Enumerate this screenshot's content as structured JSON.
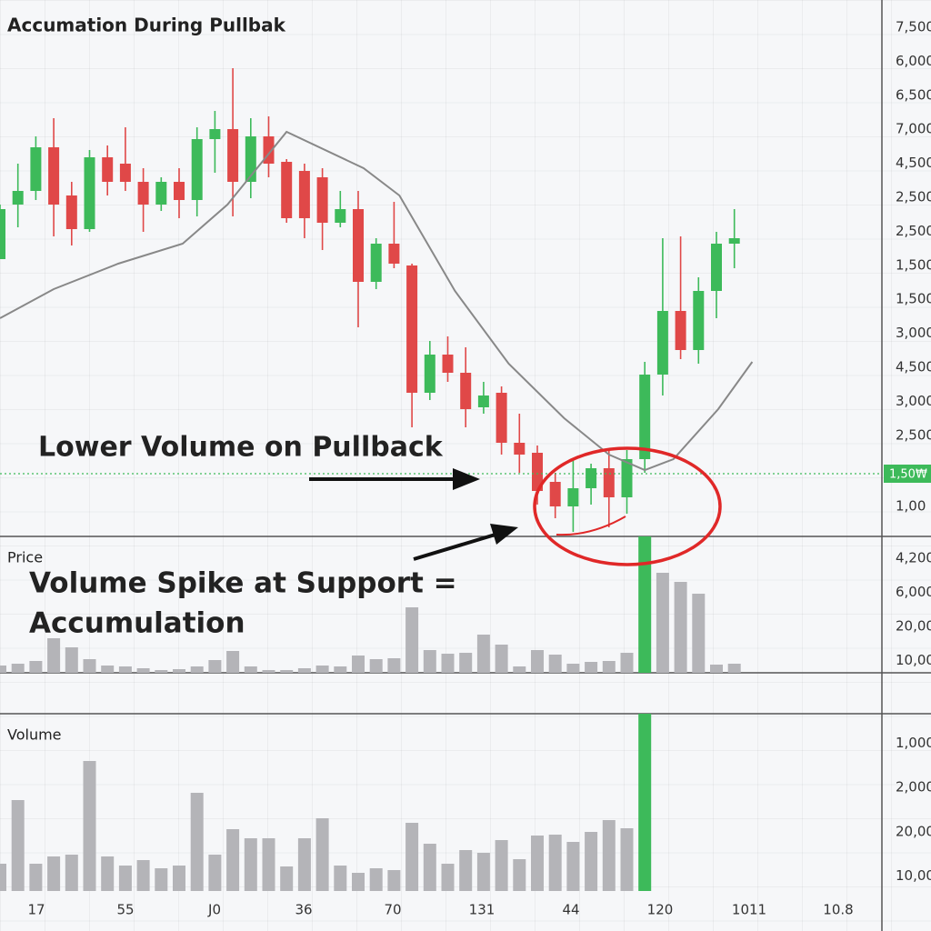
{
  "chart_data": {
    "type": "candlestick",
    "title": "Accumation During Pullbak",
    "annotations": [
      "Lower Volume on Pullback",
      "Volume Spike at Support =",
      "Accumulation"
    ],
    "up_color": "#3dba5a",
    "down_color": "#e04848",
    "x_labels": [
      "17",
      "55",
      "J0",
      "36",
      "70",
      "131",
      "44",
      "120",
      "1011",
      "10.8"
    ],
    "price": {
      "ylim": [
        0,
        590
      ],
      "y_labels": [
        "7,500",
        "6,000",
        "6,500",
        "7,000",
        "4,500",
        "2,500",
        "2,500",
        "1,500",
        "1,500",
        "3,000",
        "4,500",
        "3,000",
        "2,500",
        "1,00"
      ],
      "open": [
        305,
        365,
        380,
        428,
        375,
        338,
        417,
        410,
        390,
        365,
        390,
        370,
        437,
        448,
        390,
        440,
        412,
        402,
        395,
        345,
        360,
        280,
        322,
        298,
        158,
        200,
        180,
        142,
        158,
        103,
        92,
        60,
        33,
        53,
        75,
        43,
        85,
        178,
        248,
        205,
        270,
        322
      ],
      "close": [
        360,
        380,
        428,
        365,
        338,
        417,
        390,
        390,
        365,
        390,
        370,
        437,
        448,
        390,
        440,
        410,
        350,
        350,
        345,
        360,
        280,
        322,
        300,
        158,
        200,
        180,
        140,
        155,
        103,
        90,
        50,
        33,
        53,
        75,
        43,
        85,
        178,
        248,
        205,
        270,
        322,
        328
      ],
      "high": [
        365,
        410,
        440,
        460,
        390,
        425,
        430,
        450,
        405,
        395,
        405,
        450,
        468,
        515,
        460,
        462,
        415,
        410,
        405,
        380,
        380,
        328,
        368,
        300,
        215,
        220,
        208,
        170,
        165,
        135,
        100,
        70,
        85,
        80,
        95,
        95,
        192,
        328,
        330,
        285,
        335,
        360
      ],
      "low": [
        305,
        340,
        370,
        330,
        320,
        335,
        375,
        380,
        335,
        358,
        350,
        352,
        400,
        352,
        372,
        395,
        345,
        328,
        315,
        340,
        230,
        272,
        295,
        120,
        150,
        170,
        120,
        135,
        90,
        70,
        35,
        20,
        5,
        35,
        10,
        25,
        70,
        155,
        195,
        190,
        240,
        295
      ],
      "moving_average": {
        "color": "#888888",
        "x": [
          0,
          3,
          6.6,
          10.2,
          12.7,
          16,
          20.3,
          22.3,
          25.4,
          28.4,
          31.5,
          34,
          36,
          37.6,
          40.1,
          42
        ],
        "values": [
          240,
          272,
          300,
          322,
          365,
          445,
          405,
          375,
          270,
          190,
          130,
          90,
          73,
          85,
          140,
          192
        ]
      },
      "current_price": 69,
      "current_price_label": "1,50₩"
    },
    "volume_top": {
      "label": "Price",
      "ylim": [
        0,
        150
      ],
      "y_labels": [
        "4,200",
        "6,000",
        "20,00",
        "10,00"
      ],
      "series": [
        {
          "color": "#b4b4b8",
          "values": [
            8,
            10,
            13,
            38,
            28,
            15,
            8,
            7,
            5,
            3,
            4,
            7,
            14,
            24,
            7,
            3,
            3,
            5,
            8,
            7,
            19,
            15,
            16,
            72,
            25,
            21,
            22,
            42,
            31,
            7,
            25,
            20,
            10,
            12,
            13,
            22,
            null,
            110,
            100,
            87,
            9,
            10
          ]
        },
        {
          "color": "#3dba5a",
          "values": [
            null,
            null,
            null,
            null,
            null,
            null,
            null,
            null,
            null,
            null,
            null,
            null,
            null,
            null,
            null,
            null,
            null,
            null,
            null,
            null,
            null,
            null,
            null,
            null,
            null,
            null,
            null,
            null,
            null,
            null,
            null,
            null,
            null,
            null,
            null,
            null,
            150,
            null,
            null,
            null,
            null,
            null
          ]
        }
      ]
    },
    "volume_bottom": {
      "label": "Volume",
      "ylim": [
        0,
        195
      ],
      "y_labels": [
        "1,000",
        "2,000",
        "20,00",
        "10,00"
      ],
      "series": [
        {
          "color": "#b4b4b8",
          "values": [
            30,
            100,
            30,
            38,
            40,
            143,
            38,
            28,
            34,
            25,
            28,
            108,
            40,
            68,
            58,
            58,
            27,
            58,
            80,
            28,
            20,
            25,
            23,
            75,
            52,
            30,
            45,
            42,
            56,
            35,
            61,
            62,
            54,
            65,
            78,
            69,
            null,
            null,
            null,
            null,
            null,
            null
          ]
        },
        {
          "color": "#3dba5a",
          "values": [
            null,
            null,
            null,
            null,
            null,
            null,
            null,
            null,
            null,
            null,
            null,
            null,
            null,
            null,
            null,
            null,
            null,
            null,
            null,
            null,
            null,
            null,
            null,
            null,
            null,
            null,
            null,
            null,
            null,
            null,
            null,
            null,
            null,
            null,
            null,
            null,
            195,
            null,
            null,
            null,
            null,
            null
          ]
        }
      ]
    }
  }
}
